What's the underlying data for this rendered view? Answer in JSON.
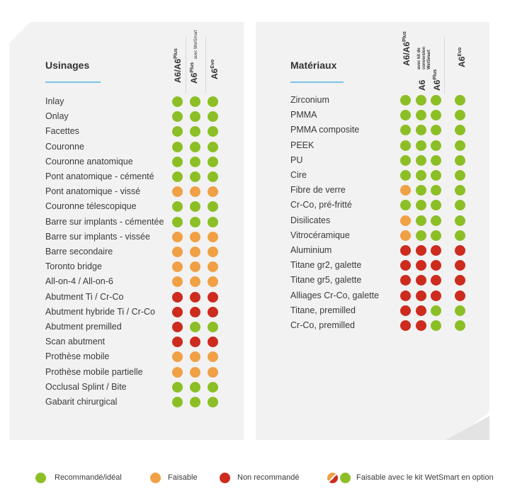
{
  "left": {
    "title": "Usinages",
    "columns": [
      {
        "main": "A6/A6",
        "sup": "Plus",
        "sub": ""
      },
      {
        "main": "A6",
        "sup": "Plus",
        "sub": "avec WetSmart"
      },
      {
        "main": "A6",
        "sup": "Evo",
        "sub": ""
      }
    ],
    "rows": [
      {
        "label": "Inlay",
        "dots": [
          "g",
          "g",
          "g"
        ]
      },
      {
        "label": "Onlay",
        "dots": [
          "g",
          "g",
          "g"
        ]
      },
      {
        "label": "Facettes",
        "dots": [
          "g",
          "g",
          "g"
        ]
      },
      {
        "label": "Couronne",
        "dots": [
          "g",
          "g",
          "g"
        ]
      },
      {
        "label": "Couronne anatomique",
        "dots": [
          "g",
          "g",
          "g"
        ]
      },
      {
        "label": "Pont anatomique - cémenté",
        "dots": [
          "g",
          "g",
          "g"
        ]
      },
      {
        "label": "Pont anatomique - vissé",
        "dots": [
          "o",
          "o",
          "o"
        ]
      },
      {
        "label": "Couronne télescopique",
        "dots": [
          "g",
          "g",
          "g"
        ]
      },
      {
        "label": "Barre sur implants - cémentée",
        "dots": [
          "g",
          "g",
          "g"
        ]
      },
      {
        "label": "Barre sur implants - vissée",
        "dots": [
          "o",
          "o",
          "o"
        ]
      },
      {
        "label": "Barre secondaire",
        "dots": [
          "o",
          "o",
          "o"
        ]
      },
      {
        "label": "Toronto bridge",
        "dots": [
          "o",
          "o",
          "o"
        ]
      },
      {
        "label": "All-on-4 / All-on-6",
        "dots": [
          "o",
          "o",
          "o"
        ]
      },
      {
        "label": "Abutment Ti / Cr-Co",
        "dots": [
          "r",
          "r",
          "r"
        ]
      },
      {
        "label": "Abutment hybride Ti / Cr-Co",
        "dots": [
          "r",
          "r",
          "r"
        ]
      },
      {
        "label": "Abutment premilled",
        "dots": [
          "r",
          "g",
          "g"
        ]
      },
      {
        "label": "Scan abutment",
        "dots": [
          "r",
          "r",
          "r"
        ]
      },
      {
        "label": "Prothèse mobile",
        "dots": [
          "o",
          "o",
          "o"
        ]
      },
      {
        "label": "Prothèse mobile partielle",
        "dots": [
          "o",
          "o",
          "o"
        ]
      },
      {
        "label": "Occlusal Splint / Bite",
        "dots": [
          "g",
          "g",
          "g"
        ]
      },
      {
        "label": "Gabarit chirurgical",
        "dots": [
          "g",
          "g",
          "g"
        ]
      }
    ]
  },
  "right": {
    "title": "Matériaux",
    "columns": {
      "c1": {
        "main": "A6/A6",
        "sup": "Plus"
      },
      "c2top": [
        "avec kit de",
        "conversion",
        "WetSmart"
      ],
      "c2": {
        "main": "A6"
      },
      "c3": {
        "main": "A6",
        "sup": "Plus"
      },
      "c4": {
        "main": "A6",
        "sup": "Evo"
      }
    },
    "rows": [
      {
        "label": "Zirconium",
        "dots": [
          "g",
          "g",
          "g",
          "g"
        ]
      },
      {
        "label": "PMMA",
        "dots": [
          "g",
          "g",
          "g",
          "g"
        ]
      },
      {
        "label": "PMMA composite",
        "dots": [
          "g",
          "g",
          "g",
          "g"
        ]
      },
      {
        "label": "PEEK",
        "dots": [
          "g",
          "g",
          "g",
          "g"
        ]
      },
      {
        "label": "PU",
        "dots": [
          "g",
          "g",
          "g",
          "g"
        ]
      },
      {
        "label": "Cire",
        "dots": [
          "g",
          "g",
          "g",
          "g"
        ]
      },
      {
        "label": "Fibre de verre",
        "dots": [
          "o",
          "g",
          "g",
          "g"
        ]
      },
      {
        "label": "Cr-Co, pré-fritté",
        "dots": [
          "g",
          "g",
          "g",
          "g"
        ]
      },
      {
        "label": "Disilicates",
        "dots": [
          "o",
          "g",
          "g",
          "g"
        ]
      },
      {
        "label": "Vitrocéramique",
        "dots": [
          "o",
          "g",
          "g",
          "g"
        ]
      },
      {
        "label": "Aluminium",
        "dots": [
          "r",
          "r",
          "r",
          "r"
        ]
      },
      {
        "label": "Titane gr2, galette",
        "dots": [
          "r",
          "r",
          "r",
          "r"
        ]
      },
      {
        "label": "Titane gr5, galette",
        "dots": [
          "r",
          "r",
          "r",
          "r"
        ]
      },
      {
        "label": "Alliages Cr-Co, galette",
        "dots": [
          "r",
          "r",
          "r",
          "r"
        ]
      },
      {
        "label": "Titane, premilled",
        "dots": [
          "r",
          "r",
          "g",
          "g"
        ]
      },
      {
        "label": "Cr-Co, premilled",
        "dots": [
          "r",
          "r",
          "g",
          "g"
        ]
      }
    ]
  },
  "legend": {
    "recommended": "Recommandé/idéal",
    "feasible": "Faisable",
    "not_recommended": "Non recommandé",
    "wetsmart": "Faisable avec le kit WetSmart en option"
  },
  "colors": {
    "green": "#8cbf26",
    "orange": "#f0a045",
    "red": "#cc2b1e",
    "accent": "#7cc3e6"
  }
}
